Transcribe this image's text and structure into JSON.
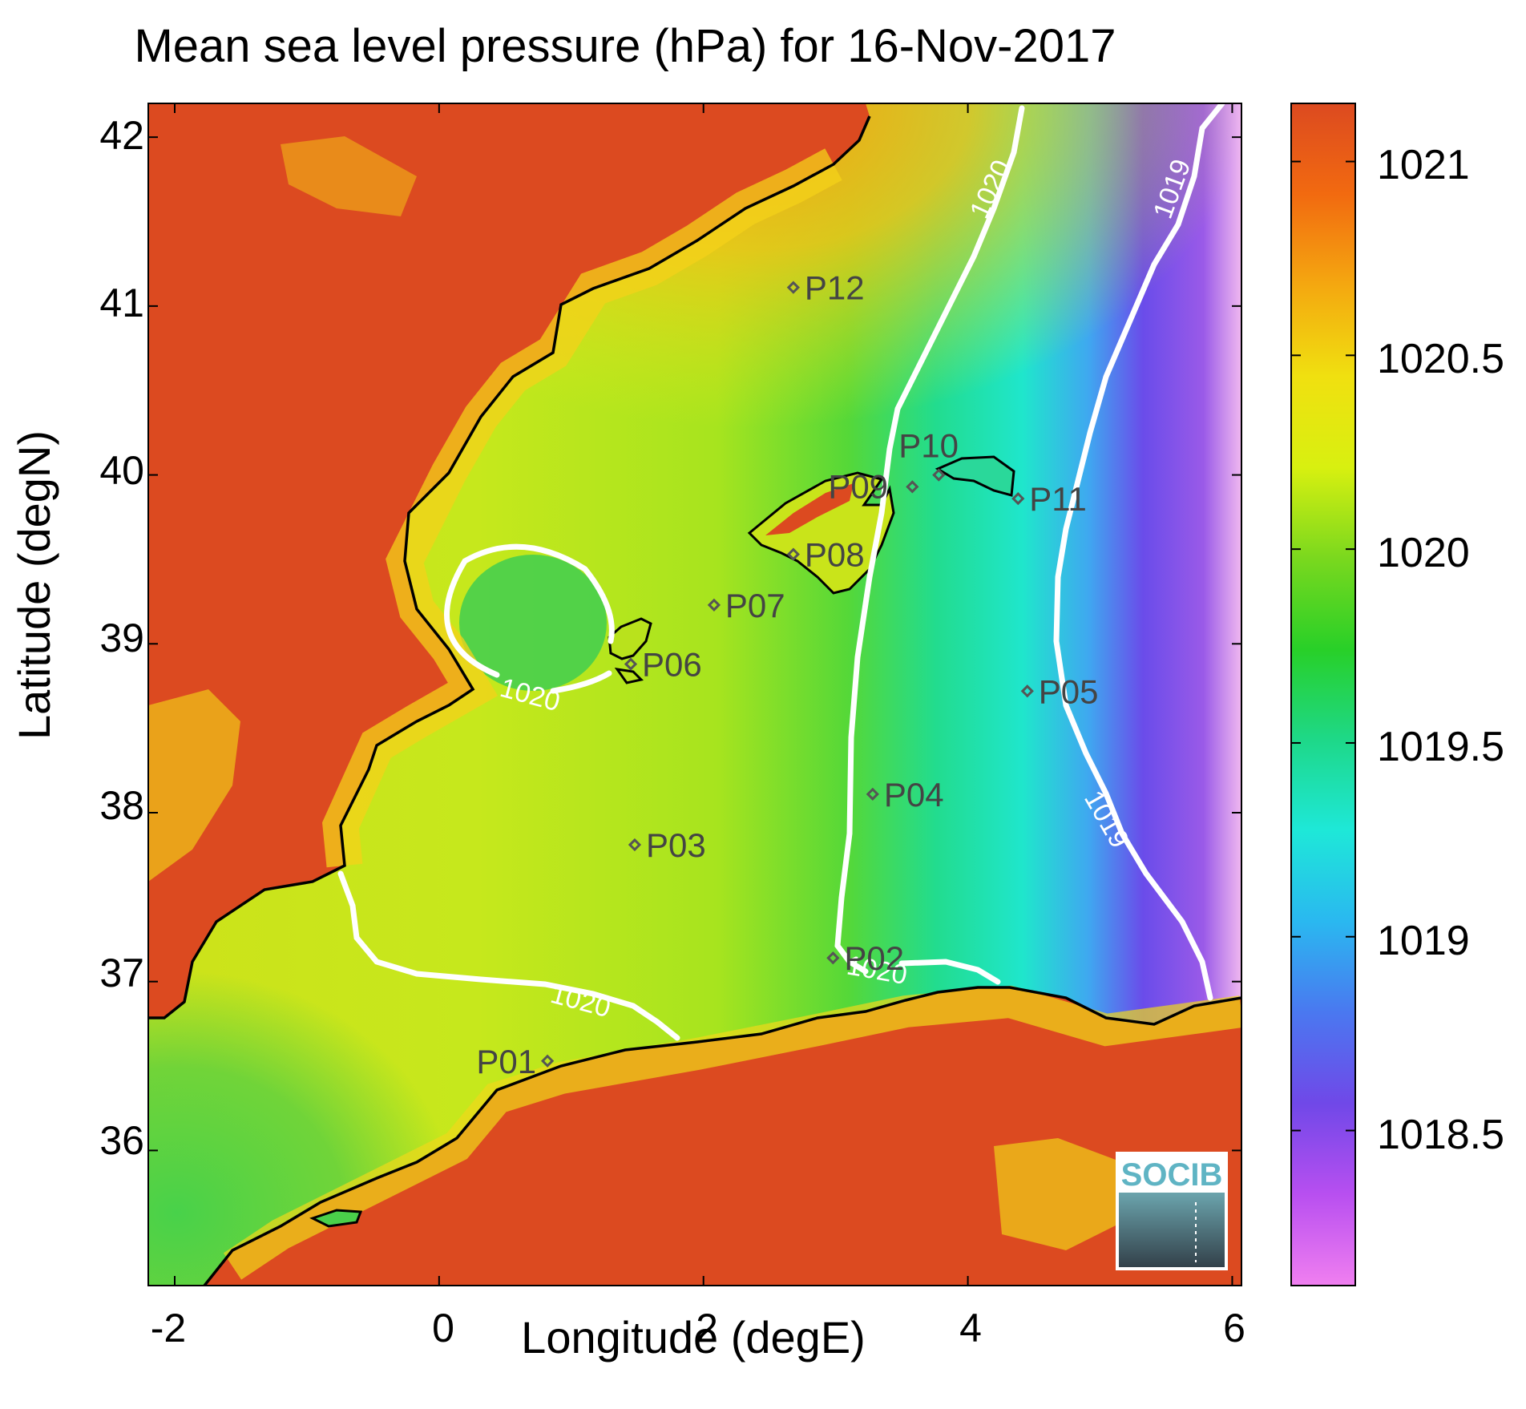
{
  "title": "Mean sea level pressure (hPa) for 16-Nov-2017",
  "x_axis": {
    "label": "Longitude (degE)",
    "ticks": [
      "-2",
      "0",
      "2",
      "4",
      "6"
    ]
  },
  "y_axis": {
    "label": "Latitude (degN)",
    "ticks": [
      "42",
      "41",
      "40",
      "39",
      "38",
      "37",
      "36"
    ]
  },
  "colorbar": {
    "ticks": [
      "1021",
      "1020.5",
      "1020",
      "1019.5",
      "1019",
      "1018.5"
    ],
    "range": [
      1018.1,
      1021.15
    ],
    "colors": [
      "#f07ff0",
      "#b84ff0",
      "#7048e8",
      "#4a78f0",
      "#2ab8f0",
      "#1ee8d8",
      "#1ed888",
      "#28d028",
      "#7ad81e",
      "#d8f010",
      "#f0e010",
      "#f4a810",
      "#f26a10",
      "#dc4a20"
    ]
  },
  "contour_labels": [
    "1020",
    "1019",
    "1020",
    "1019",
    "1020",
    "1020"
  ],
  "stations": [
    {
      "id": "P01",
      "lon": 0.82,
      "lat": 36.53
    },
    {
      "id": "P02",
      "lon": 2.98,
      "lat": 37.14
    },
    {
      "id": "P03",
      "lon": 1.48,
      "lat": 37.81
    },
    {
      "id": "P04",
      "lon": 3.28,
      "lat": 38.11
    },
    {
      "id": "P05",
      "lon": 4.45,
      "lat": 38.72
    },
    {
      "id": "P06",
      "lon": 1.45,
      "lat": 38.88
    },
    {
      "id": "P07",
      "lon": 2.08,
      "lat": 39.23
    },
    {
      "id": "P08",
      "lon": 2.68,
      "lat": 39.53
    },
    {
      "id": "P09",
      "lon": 3.58,
      "lat": 39.93
    },
    {
      "id": "P10",
      "lon": 3.78,
      "lat": 40.0
    },
    {
      "id": "P11",
      "lon": 4.38,
      "lat": 39.86
    },
    {
      "id": "P12",
      "lon": 2.68,
      "lat": 41.11
    }
  ],
  "logo": {
    "text": "SOCIB"
  }
}
